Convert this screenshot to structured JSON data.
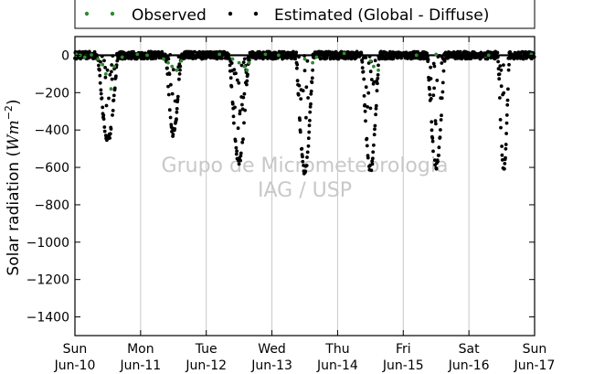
{
  "chart_data": {
    "type": "scatter",
    "title": "",
    "ylabel_main": "Solar radiation (",
    "ylabel_unit": "Wm",
    "ylabel_exp": "−2",
    "ylabel_close": ")",
    "ylim": [
      -1500,
      100
    ],
    "yticks": [
      0,
      -200,
      -400,
      -600,
      -800,
      -1000,
      -1200,
      -1400
    ],
    "ytick_labels": [
      "0",
      "−200",
      "−400",
      "−600",
      "−800",
      "−1000",
      "−1200",
      "−1400"
    ],
    "xlim": [
      0,
      7
    ],
    "xticks": [
      0,
      1,
      2,
      3,
      4,
      5,
      6,
      7
    ],
    "xtick_day_labels": [
      "Sun",
      "Mon",
      "Tue",
      "Wed",
      "Thu",
      "Fri",
      "Sat",
      "Sun"
    ],
    "xtick_date_labels": [
      "Jun-10",
      "Jun-11",
      "Jun-12",
      "Jun-13",
      "Jun-14",
      "Jun-15",
      "Jun-16",
      "Jun-17"
    ],
    "grid": "vertical",
    "legend_position": "top",
    "watermark": [
      "Grupo de Micrometeorologia",
      "IAG / USP"
    ],
    "colors": {
      "observed": "#2e8b2e",
      "estimated": "#000000",
      "grid": "#c8c8c8",
      "watermark": "#c8c8c8"
    },
    "series": [
      {
        "name": "Observed",
        "x": [
          0.02,
          0.08,
          0.15,
          0.25,
          0.35,
          0.42,
          0.47,
          0.55,
          0.6,
          0.72,
          0.95,
          1.1,
          1.35,
          1.42,
          1.48,
          1.55,
          1.62,
          2.2,
          2.4,
          2.5,
          2.58,
          2.62,
          2.65,
          2.9,
          3.1,
          3.5,
          3.62,
          3.68,
          4.1,
          4.5,
          4.55,
          4.62,
          5.2,
          5.5,
          6.3,
          6.95
        ],
        "y": [
          5,
          0,
          -10,
          2,
          -20,
          -50,
          -100,
          -180,
          -60,
          -10,
          5,
          0,
          -20,
          -40,
          -60,
          -80,
          -30,
          5,
          -20,
          -40,
          -60,
          -80,
          -40,
          5,
          0,
          -20,
          -40,
          -10,
          10,
          -30,
          -60,
          -80,
          0,
          5,
          0,
          5
        ]
      },
      {
        "name": "Estimated (Global - Diffuse)",
        "days": [
          {
            "peak": -450,
            "center": 0.5,
            "width": 0.16
          },
          {
            "peak": -420,
            "center": 1.5,
            "width": 0.12
          },
          {
            "peak": -570,
            "center": 2.5,
            "width": 0.16
          },
          {
            "peak": -620,
            "center": 3.5,
            "width": 0.14
          },
          {
            "peak": -610,
            "center": 4.5,
            "width": 0.14
          },
          {
            "peak": -600,
            "center": 5.5,
            "width": 0.14
          },
          {
            "peak": -620,
            "center": 6.53,
            "width": 0.09
          }
        ]
      }
    ]
  }
}
